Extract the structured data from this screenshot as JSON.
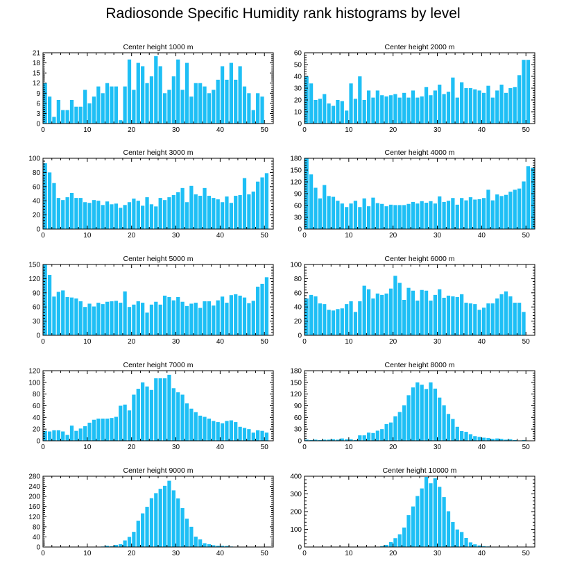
{
  "title": "Radiosonde Specific Humidity rank histograms by level",
  "colors": {
    "bar": "#1ebff5",
    "axis": "#000000"
  },
  "chart_data": [
    {
      "type": "bar",
      "title": "Center height 1000 m",
      "x": [
        0,
        1,
        2,
        3,
        4,
        5,
        6,
        7,
        8,
        9,
        10,
        11,
        12,
        13,
        14,
        15,
        16,
        17,
        18,
        19,
        20,
        21,
        22,
        23,
        24,
        25,
        26,
        27,
        28,
        29,
        30,
        31,
        32,
        33,
        34,
        35,
        36,
        37,
        38,
        39,
        40,
        41,
        42,
        43,
        44,
        45,
        46,
        47,
        48,
        49,
        50,
        51
      ],
      "values": [
        12,
        8,
        2,
        7,
        4,
        4,
        7,
        5,
        5,
        10,
        6,
        8,
        11,
        9,
        12,
        11,
        11,
        1,
        11,
        19,
        10,
        18,
        17,
        12,
        14,
        20,
        17,
        9,
        10,
        14,
        19,
        10,
        18,
        8,
        12,
        12,
        11,
        9,
        10,
        13,
        17,
        13,
        18,
        13,
        17,
        11,
        9,
        4,
        9,
        8,
        0,
        0
      ],
      "ylim": [
        0,
        21
      ],
      "yticks": [
        0,
        3,
        6,
        9,
        12,
        15,
        18,
        21
      ],
      "xticks": [
        0,
        10,
        20,
        30,
        40,
        50
      ],
      "xlim": [
        0,
        52
      ]
    },
    {
      "type": "bar",
      "title": "Center height 2000 m",
      "x": [
        0,
        1,
        2,
        3,
        4,
        5,
        6,
        7,
        8,
        9,
        10,
        11,
        12,
        13,
        14,
        15,
        16,
        17,
        18,
        19,
        20,
        21,
        22,
        23,
        24,
        25,
        26,
        27,
        28,
        29,
        30,
        31,
        32,
        33,
        34,
        35,
        36,
        37,
        38,
        39,
        40,
        41,
        42,
        43,
        44,
        45,
        46,
        47,
        48,
        49,
        50,
        51
      ],
      "values": [
        40,
        34,
        20,
        21,
        25,
        17,
        15,
        20,
        19,
        11,
        34,
        21,
        40,
        20,
        28,
        22,
        28,
        24,
        23,
        24,
        25,
        22,
        26,
        22,
        28,
        22,
        23,
        31,
        24,
        28,
        33,
        25,
        27,
        39,
        22,
        35,
        30,
        30,
        29,
        28,
        26,
        32,
        22,
        28,
        33,
        26,
        30,
        31,
        41,
        54,
        54,
        0
      ],
      "ylim": [
        0,
        60
      ],
      "yticks": [
        0,
        10,
        20,
        30,
        40,
        50,
        60
      ],
      "xticks": [
        0,
        10,
        20,
        30,
        40,
        50
      ],
      "xlim": [
        0,
        52
      ]
    },
    {
      "type": "bar",
      "title": "Center height 3000 m",
      "x": [
        0,
        1,
        2,
        3,
        4,
        5,
        6,
        7,
        8,
        9,
        10,
        11,
        12,
        13,
        14,
        15,
        16,
        17,
        18,
        19,
        20,
        21,
        22,
        23,
        24,
        25,
        26,
        27,
        28,
        29,
        30,
        31,
        32,
        33,
        34,
        35,
        36,
        37,
        38,
        39,
        40,
        41,
        42,
        43,
        44,
        45,
        46,
        47,
        48,
        49,
        50,
        51
      ],
      "values": [
        93,
        80,
        65,
        44,
        41,
        45,
        51,
        44,
        44,
        38,
        37,
        41,
        40,
        34,
        39,
        35,
        36,
        30,
        34,
        38,
        43,
        40,
        33,
        45,
        35,
        32,
        44,
        41,
        45,
        48,
        52,
        58,
        38,
        61,
        49,
        47,
        58,
        47,
        44,
        42,
        38,
        46,
        37,
        47,
        48,
        72,
        49,
        53,
        67,
        73,
        79,
        0
      ],
      "ylim": [
        0,
        100
      ],
      "yticks": [
        0,
        20,
        40,
        60,
        80,
        100
      ],
      "xticks": [
        0,
        10,
        20,
        30,
        40,
        50
      ],
      "xlim": [
        0,
        52
      ]
    },
    {
      "type": "bar",
      "title": "Center height 4000 m",
      "x": [
        0,
        1,
        2,
        3,
        4,
        5,
        6,
        7,
        8,
        9,
        10,
        11,
        12,
        13,
        14,
        15,
        16,
        17,
        18,
        19,
        20,
        21,
        22,
        23,
        24,
        25,
        26,
        27,
        28,
        29,
        30,
        31,
        32,
        33,
        34,
        35,
        36,
        37,
        38,
        39,
        40,
        41,
        42,
        43,
        44,
        45,
        46,
        47,
        48,
        49,
        50,
        51
      ],
      "values": [
        180,
        139,
        105,
        78,
        112,
        84,
        82,
        72,
        65,
        56,
        65,
        72,
        56,
        78,
        58,
        80,
        66,
        64,
        58,
        62,
        61,
        61,
        61,
        64,
        69,
        65,
        71,
        67,
        71,
        65,
        83,
        69,
        72,
        79,
        62,
        79,
        73,
        81,
        75,
        76,
        79,
        100,
        73,
        88,
        84,
        87,
        95,
        100,
        103,
        121,
        160,
        156
      ],
      "ylim": [
        0,
        180
      ],
      "yticks": [
        0,
        30,
        60,
        90,
        120,
        150,
        180
      ],
      "xticks": [
        0,
        10,
        20,
        30,
        40,
        50
      ],
      "xlim": [
        0,
        52
      ]
    },
    {
      "type": "bar",
      "title": "Center height 5000 m",
      "x": [
        0,
        1,
        2,
        3,
        4,
        5,
        6,
        7,
        8,
        9,
        10,
        11,
        12,
        13,
        14,
        15,
        16,
        17,
        18,
        19,
        20,
        21,
        22,
        23,
        24,
        25,
        26,
        27,
        28,
        29,
        30,
        31,
        32,
        33,
        34,
        35,
        36,
        37,
        38,
        39,
        40,
        41,
        42,
        43,
        44,
        45,
        46,
        47,
        48,
        49,
        50,
        51
      ],
      "values": [
        150,
        128,
        82,
        92,
        95,
        81,
        80,
        78,
        72,
        60,
        67,
        61,
        69,
        66,
        71,
        72,
        73,
        69,
        93,
        60,
        65,
        72,
        69,
        48,
        65,
        71,
        65,
        84,
        81,
        74,
        81,
        71,
        62,
        67,
        69,
        58,
        72,
        72,
        63,
        74,
        82,
        69,
        85,
        87,
        84,
        80,
        68,
        73,
        103,
        109,
        123,
        0
      ],
      "ylim": [
        0,
        150
      ],
      "yticks": [
        0,
        30,
        60,
        90,
        120,
        150
      ],
      "xticks": [
        0,
        10,
        20,
        30,
        40,
        50
      ],
      "xlim": [
        0,
        52
      ]
    },
    {
      "type": "bar",
      "title": "Center height 6000 m",
      "x": [
        0,
        1,
        2,
        3,
        4,
        5,
        6,
        7,
        8,
        9,
        10,
        11,
        12,
        13,
        14,
        15,
        16,
        17,
        18,
        19,
        20,
        21,
        22,
        23,
        24,
        25,
        26,
        27,
        28,
        29,
        30,
        31,
        32,
        33,
        34,
        35,
        36,
        37,
        38,
        39,
        40,
        41,
        42,
        43,
        44,
        45,
        46,
        47,
        48,
        49,
        50,
        51
      ],
      "values": [
        52,
        57,
        55,
        45,
        44,
        36,
        35,
        37,
        38,
        44,
        48,
        33,
        48,
        70,
        65,
        52,
        59,
        57,
        59,
        66,
        84,
        74,
        50,
        67,
        63,
        49,
        64,
        63,
        49,
        57,
        65,
        53,
        56,
        55,
        54,
        58,
        46,
        45,
        44,
        36,
        39,
        45,
        45,
        52,
        58,
        62,
        55,
        46,
        46,
        33,
        0,
        0
      ],
      "ylim": [
        0,
        100
      ],
      "yticks": [
        0,
        20,
        40,
        60,
        80,
        100
      ],
      "xticks": [
        0,
        10,
        20,
        30,
        40,
        50
      ],
      "xlim": [
        0,
        52
      ]
    },
    {
      "type": "bar",
      "title": "Center height 7000 m",
      "x": [
        0,
        1,
        2,
        3,
        4,
        5,
        6,
        7,
        8,
        9,
        10,
        11,
        12,
        13,
        14,
        15,
        16,
        17,
        18,
        19,
        20,
        21,
        22,
        23,
        24,
        25,
        26,
        27,
        28,
        29,
        30,
        31,
        32,
        33,
        34,
        35,
        36,
        37,
        38,
        39,
        40,
        41,
        42,
        43,
        44,
        45,
        46,
        47,
        48,
        49,
        50,
        51
      ],
      "values": [
        17,
        16,
        18,
        18,
        16,
        10,
        26,
        17,
        21,
        25,
        31,
        36,
        38,
        38,
        38,
        39,
        41,
        60,
        62,
        52,
        79,
        89,
        100,
        93,
        87,
        107,
        107,
        107,
        113,
        90,
        83,
        79,
        64,
        55,
        49,
        43,
        41,
        38,
        34,
        32,
        30,
        34,
        35,
        32,
        24,
        22,
        20,
        14,
        18,
        17,
        14,
        0
      ],
      "ylim": [
        0,
        120
      ],
      "yticks": [
        0,
        20,
        40,
        60,
        80,
        100,
        120
      ],
      "xticks": [
        0,
        10,
        20,
        30,
        40,
        50
      ],
      "xlim": [
        0,
        52
      ]
    },
    {
      "type": "bar",
      "title": "Center height 8000 m",
      "x": [
        0,
        1,
        2,
        3,
        4,
        5,
        6,
        7,
        8,
        9,
        10,
        11,
        12,
        13,
        14,
        15,
        16,
        17,
        18,
        19,
        20,
        21,
        22,
        23,
        24,
        25,
        26,
        27,
        28,
        29,
        30,
        31,
        32,
        33,
        34,
        35,
        36,
        37,
        38,
        39,
        40,
        41,
        42,
        43,
        44,
        45,
        46,
        47,
        48,
        49,
        50,
        51
      ],
      "values": [
        3,
        2,
        3,
        2,
        3,
        3,
        4,
        3,
        6,
        4,
        4,
        2,
        14,
        14,
        21,
        20,
        26,
        30,
        43,
        47,
        63,
        74,
        91,
        117,
        137,
        150,
        144,
        133,
        150,
        134,
        111,
        91,
        69,
        56,
        36,
        25,
        23,
        17,
        12,
        10,
        8,
        7,
        5,
        6,
        5,
        3,
        4,
        2,
        1,
        2,
        0,
        0
      ],
      "ylim": [
        0,
        180
      ],
      "yticks": [
        0,
        30,
        60,
        90,
        120,
        150,
        180
      ],
      "xticks": [
        0,
        10,
        20,
        30,
        40,
        50
      ],
      "xlim": [
        0,
        52
      ]
    },
    {
      "type": "bar",
      "title": "Center height 9000 m",
      "x": [
        0,
        1,
        2,
        3,
        4,
        5,
        6,
        7,
        8,
        9,
        10,
        11,
        12,
        13,
        14,
        15,
        16,
        17,
        18,
        19,
        20,
        21,
        22,
        23,
        24,
        25,
        26,
        27,
        28,
        29,
        30,
        31,
        32,
        33,
        34,
        35,
        36,
        37,
        38,
        39,
        40,
        41,
        42,
        43,
        44,
        45,
        46,
        47,
        48,
        49,
        50,
        51
      ],
      "values": [
        1,
        1,
        1,
        1,
        1,
        1,
        1,
        1,
        1,
        1,
        1,
        1,
        1,
        2,
        5,
        3,
        8,
        11,
        26,
        40,
        60,
        104,
        133,
        159,
        193,
        213,
        230,
        242,
        262,
        224,
        192,
        154,
        112,
        80,
        41,
        30,
        15,
        11,
        7,
        5,
        5,
        4,
        2,
        1,
        1,
        1,
        1,
        0,
        0,
        0,
        0,
        0
      ],
      "ylim": [
        0,
        280
      ],
      "yticks": [
        0,
        40,
        80,
        120,
        160,
        200,
        240,
        280
      ],
      "xticks": [
        0,
        10,
        20,
        30,
        40,
        50
      ],
      "xlim": [
        0,
        52
      ]
    },
    {
      "type": "bar",
      "title": "Center height 10000 m",
      "x": [
        0,
        1,
        2,
        3,
        4,
        5,
        6,
        7,
        8,
        9,
        10,
        11,
        12,
        13,
        14,
        15,
        16,
        17,
        18,
        19,
        20,
        21,
        22,
        23,
        24,
        25,
        26,
        27,
        28,
        29,
        30,
        31,
        32,
        33,
        34,
        35,
        36,
        37,
        38,
        39,
        40,
        41,
        42,
        43,
        44,
        45,
        46,
        47,
        48,
        49,
        50,
        51
      ],
      "values": [
        0,
        0,
        0,
        0,
        0,
        0,
        0,
        0,
        0,
        0,
        0,
        1,
        1,
        1,
        1,
        1,
        2,
        5,
        12,
        28,
        50,
        72,
        110,
        180,
        229,
        288,
        331,
        396,
        360,
        388,
        340,
        282,
        202,
        141,
        99,
        85,
        51,
        26,
        15,
        9,
        5,
        3,
        1,
        1,
        1,
        0,
        0,
        0,
        0,
        0,
        0,
        0
      ],
      "ylim": [
        0,
        400
      ],
      "yticks": [
        0,
        100,
        200,
        300,
        400
      ],
      "xticks": [
        0,
        10,
        20,
        30,
        40,
        50
      ],
      "xlim": [
        0,
        52
      ]
    }
  ]
}
